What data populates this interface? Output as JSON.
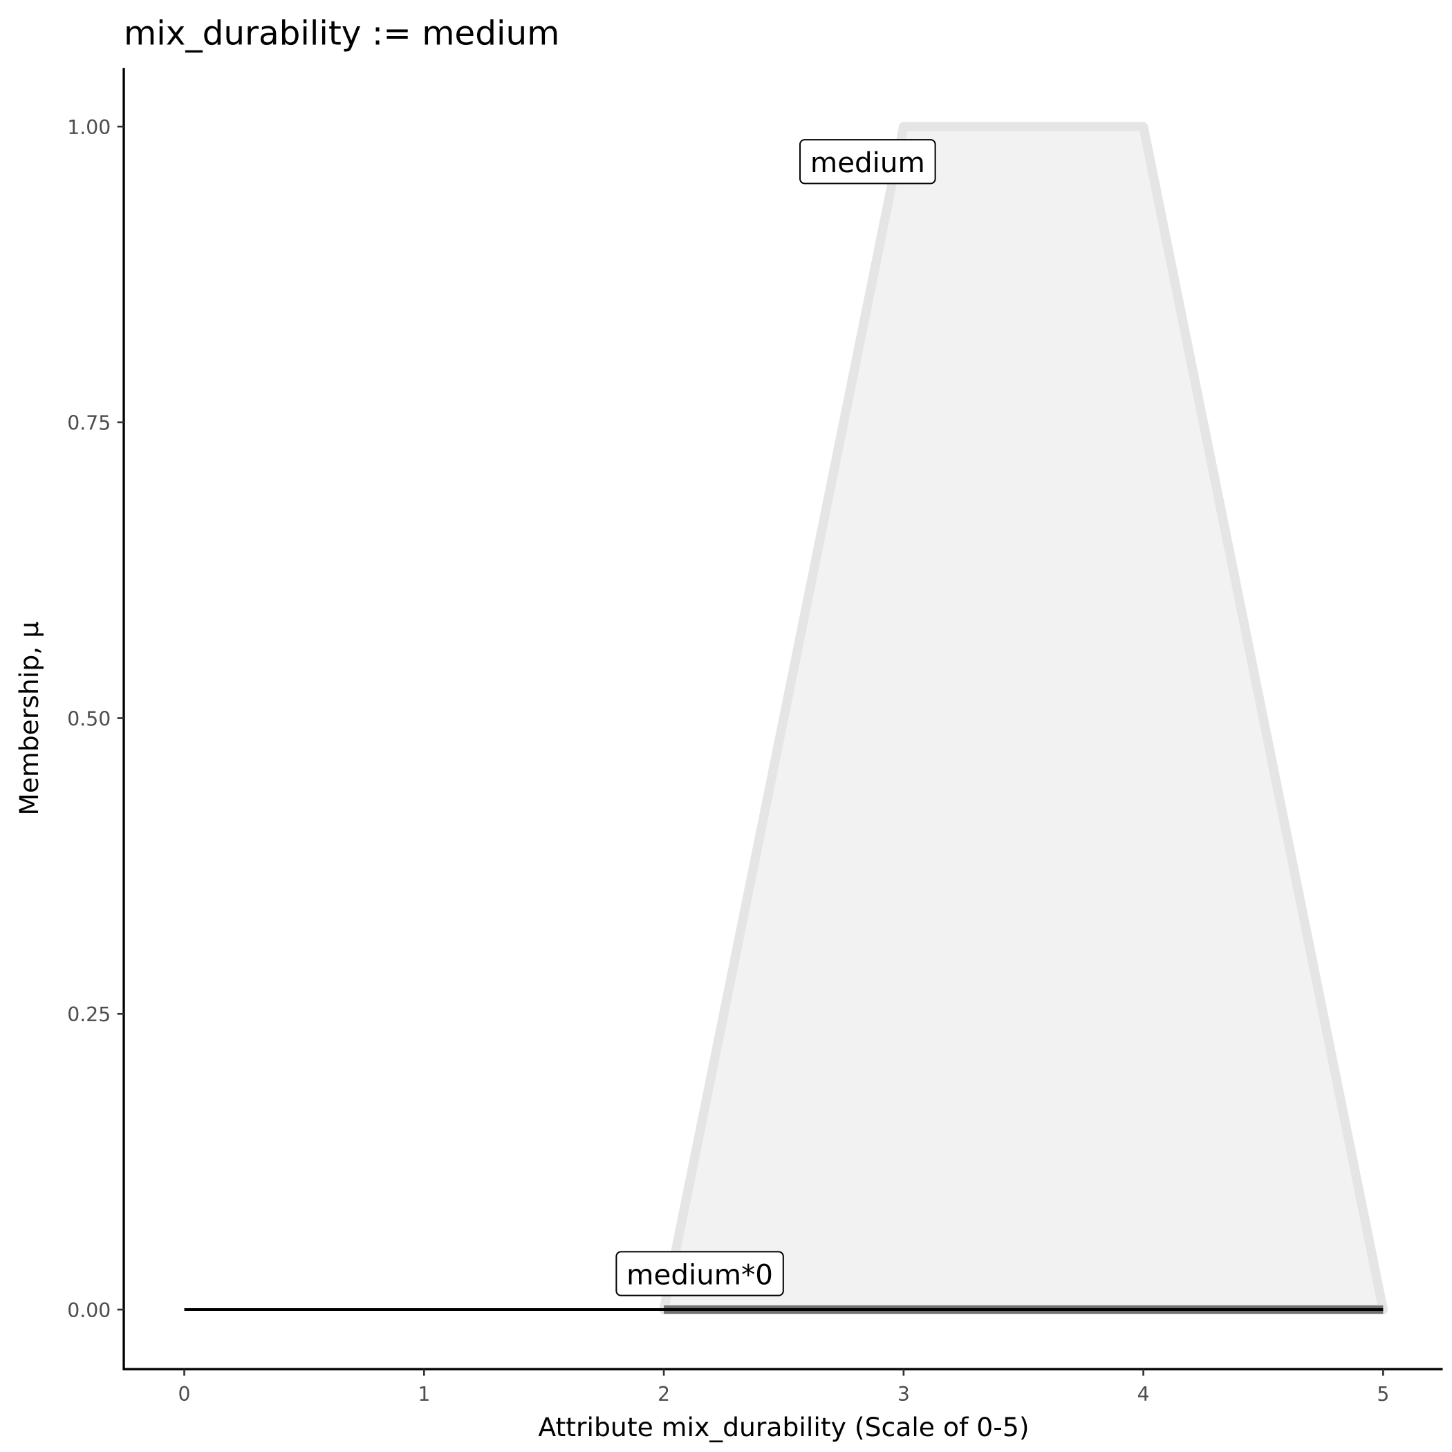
{
  "chart_data": {
    "type": "area",
    "title": "mix_durability := medium",
    "xlabel": "Attribute mix_durability (Scale of 0-5)",
    "ylabel": "Membership, μ",
    "xlim": [
      -0.25,
      5.25
    ],
    "ylim": [
      -0.05,
      1.05
    ],
    "x_ticks": [
      "0",
      "1",
      "2",
      "3",
      "4",
      "5"
    ],
    "y_ticks": [
      "0.00",
      "0.25",
      "0.50",
      "0.75",
      "1.00"
    ],
    "grid": false,
    "series": [
      {
        "name": "medium",
        "x": [
          2,
          3,
          4,
          5
        ],
        "y": [
          0,
          1,
          1,
          0
        ],
        "fill": "#f2f2f2",
        "stroke": "#e5e5e5"
      },
      {
        "name": "medium*0",
        "x": [
          0,
          2,
          3,
          4,
          5
        ],
        "y": [
          0,
          0,
          0,
          0,
          0
        ],
        "stroke": "#000000"
      }
    ],
    "annotations": [
      {
        "text": "medium",
        "x": 2.85,
        "y": 0.97
      },
      {
        "text": "medium*0",
        "x": 2.15,
        "y": 0.03
      }
    ]
  }
}
